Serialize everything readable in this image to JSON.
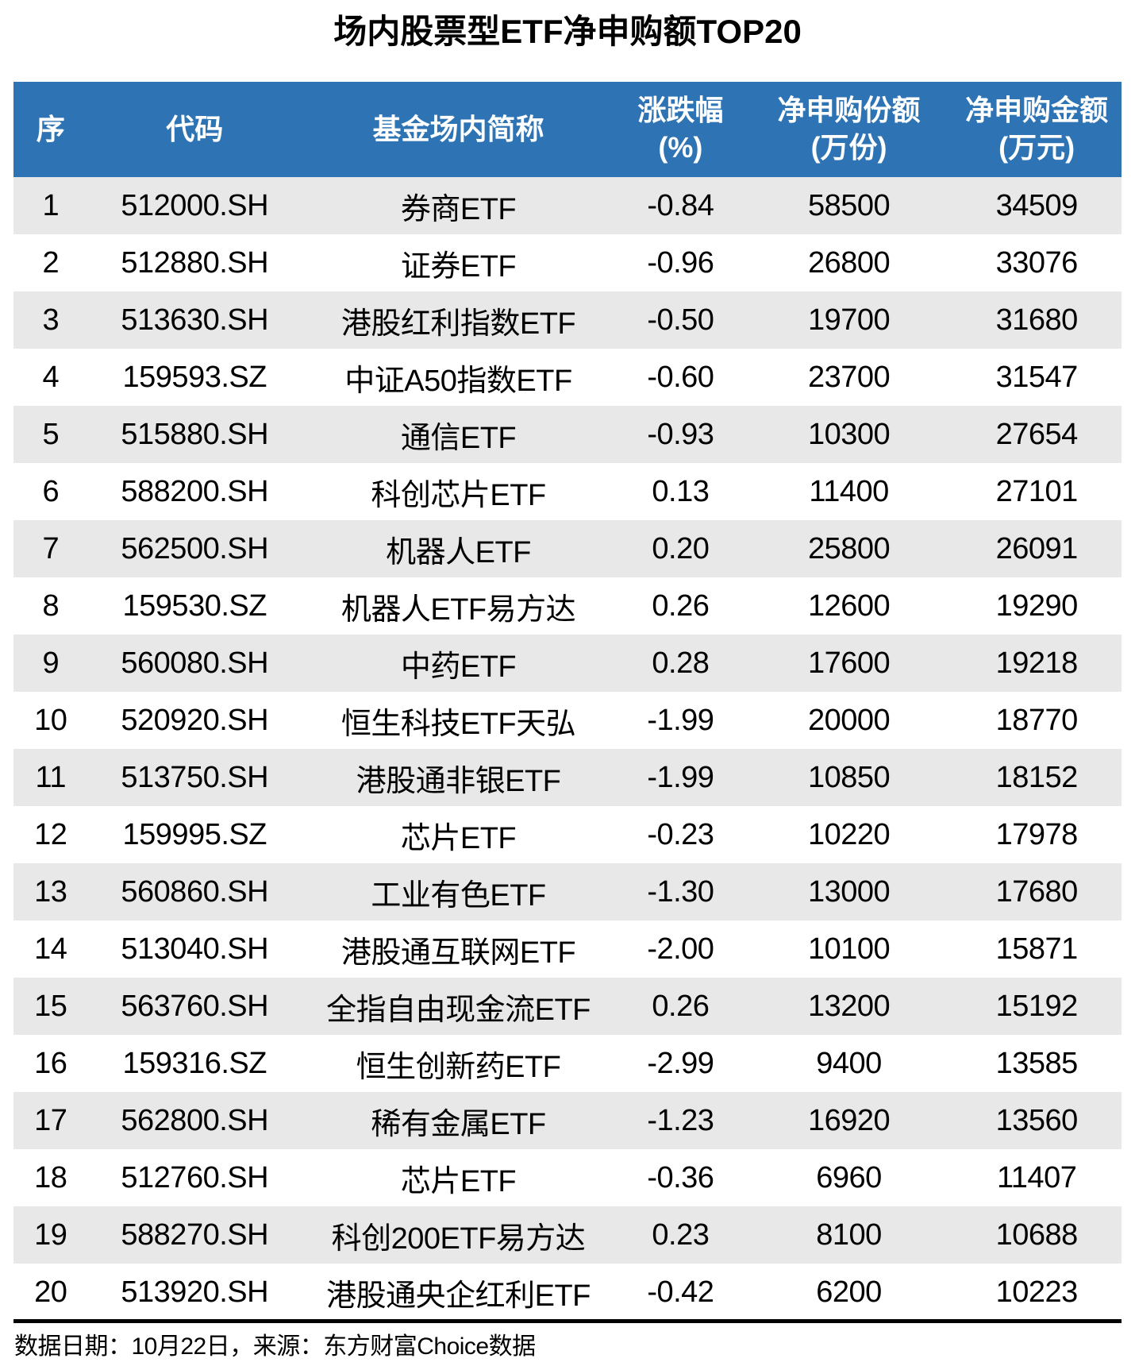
{
  "title": "场内股票型ETF净申购额TOP20",
  "colors": {
    "header_bg": "#2E74B5",
    "header_text": "#FFFFFF",
    "row_alt_bg": "#E8E8E8",
    "row_bg": "#FFFFFF",
    "body_text": "#000000",
    "separator": "#000000"
  },
  "chart_data": {
    "type": "table",
    "title": "场内股票型ETF净申购额TOP20",
    "columns": [
      {
        "line1": "序",
        "line2": ""
      },
      {
        "line1": "代码",
        "line2": ""
      },
      {
        "line1": "基金场内简称",
        "line2": ""
      },
      {
        "line1": "涨跌幅",
        "line2": "(%)"
      },
      {
        "line1": "净申购份额",
        "line2": "(万份)"
      },
      {
        "line1": "净申购金额",
        "line2": "(万元)"
      }
    ],
    "rows": [
      [
        "1",
        "512000.SH",
        "券商ETF",
        "-0.84",
        "58500",
        "34509"
      ],
      [
        "2",
        "512880.SH",
        "证券ETF",
        "-0.96",
        "26800",
        "33076"
      ],
      [
        "3",
        "513630.SH",
        "港股红利指数ETF",
        "-0.50",
        "19700",
        "31680"
      ],
      [
        "4",
        "159593.SZ",
        "中证A50指数ETF",
        "-0.60",
        "23700",
        "31547"
      ],
      [
        "5",
        "515880.SH",
        "通信ETF",
        "-0.93",
        "10300",
        "27654"
      ],
      [
        "6",
        "588200.SH",
        "科创芯片ETF",
        "0.13",
        "11400",
        "27101"
      ],
      [
        "7",
        "562500.SH",
        "机器人ETF",
        "0.20",
        "25800",
        "26091"
      ],
      [
        "8",
        "159530.SZ",
        "机器人ETF易方达",
        "0.26",
        "12600",
        "19290"
      ],
      [
        "9",
        "560080.SH",
        "中药ETF",
        "0.28",
        "17600",
        "19218"
      ],
      [
        "10",
        "520920.SH",
        "恒生科技ETF天弘",
        "-1.99",
        "20000",
        "18770"
      ],
      [
        "11",
        "513750.SH",
        "港股通非银ETF",
        "-1.99",
        "10850",
        "18152"
      ],
      [
        "12",
        "159995.SZ",
        "芯片ETF",
        "-0.23",
        "10220",
        "17978"
      ],
      [
        "13",
        "560860.SH",
        "工业有色ETF",
        "-1.30",
        "13000",
        "17680"
      ],
      [
        "14",
        "513040.SH",
        "港股通互联网ETF",
        "-2.00",
        "10100",
        "15871"
      ],
      [
        "15",
        "563760.SH",
        "全指自由现金流ETF",
        "0.26",
        "13200",
        "15192"
      ],
      [
        "16",
        "159316.SZ",
        "恒生创新药ETF",
        "-2.99",
        "9400",
        "13585"
      ],
      [
        "17",
        "562800.SH",
        "稀有金属ETF",
        "-1.23",
        "16920",
        "13560"
      ],
      [
        "18",
        "512760.SH",
        "芯片ETF",
        "-0.36",
        "6960",
        "11407"
      ],
      [
        "19",
        "588270.SH",
        "科创200ETF易方达",
        "0.23",
        "8100",
        "10688"
      ],
      [
        "20",
        "513920.SH",
        "港股通央企红利ETF",
        "-0.42",
        "6200",
        "10223"
      ]
    ]
  },
  "footer": {
    "note": "数据日期：10月22日，来源：东方财富Choice数据"
  }
}
